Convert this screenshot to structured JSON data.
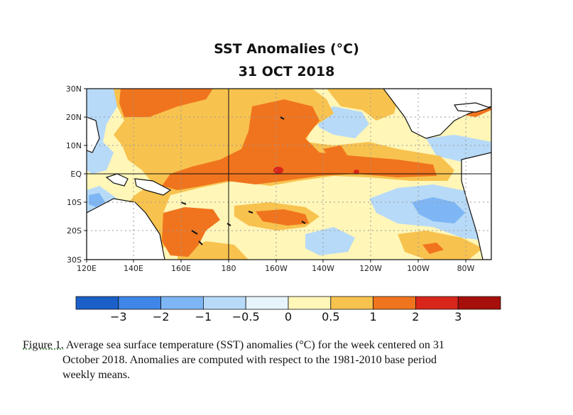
{
  "title": "SST Anomalies (°C)",
  "date": "31 OCT 2018",
  "lat_labels": [
    "30N",
    "20N",
    "10N",
    "EQ",
    "10S",
    "20S",
    "30S"
  ],
  "lon_labels": [
    "120E",
    "140E",
    "160E",
    "180",
    "160W",
    "140W",
    "120W",
    "100W",
    "80W"
  ],
  "colorbar": {
    "labels": [
      "−3",
      "−2",
      "−1",
      "−0.5",
      "0",
      "0.5",
      "1",
      "2",
      "3"
    ],
    "colors": [
      "#1b5fc9",
      "#3f86e8",
      "#7eb6f5",
      "#b7daf8",
      "#e6f4fb",
      "#fff6b8",
      "#f8c24e",
      "#f0741d",
      "#d9261b",
      "#a60f0a"
    ]
  },
  "caption": {
    "fig_label": "Figure 1.",
    "line1": " Average sea surface temperature (SST) anomalies (°C) for the week centered on 31",
    "line2": "October 2018.  Anomalies are computed with respect to the 1981-2010 base period",
    "line3": "weekly means."
  }
}
